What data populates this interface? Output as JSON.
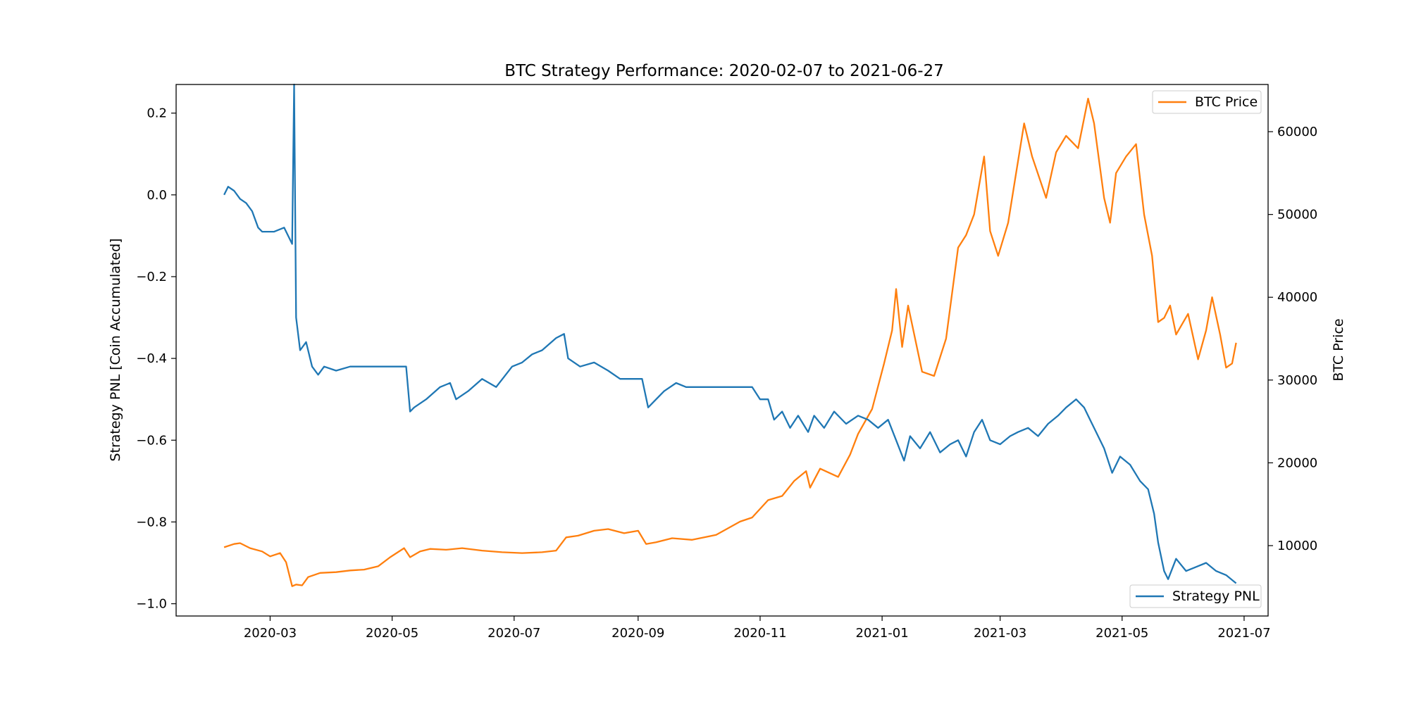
{
  "chart_data": {
    "type": "line",
    "title": "BTC Strategy Performance: 2020-02-07 to 2021-06-27",
    "xlabel": "",
    "x_ticks": [
      "2020-03",
      "2020-05",
      "2020-07",
      "2020-09",
      "2020-11",
      "2021-01",
      "2021-03",
      "2021-05",
      "2021-07"
    ],
    "xlim": [
      "2020-01-14",
      "2021-07-13"
    ],
    "left_axis": {
      "label": "Strategy PNL [Coin Accumulated]",
      "ylim": [
        -1.03,
        0.27
      ],
      "ticks": [
        0.2,
        0.0,
        -0.2,
        -0.4,
        -0.6,
        -0.8,
        -1.0
      ],
      "tick_labels": [
        "0.2",
        "0.0",
        "−0.2",
        "−0.4",
        "−0.6",
        "−0.8",
        "−1.0"
      ]
    },
    "right_axis": {
      "label": "BTC Price",
      "ylim": [
        1500,
        65700
      ],
      "ticks": [
        10000,
        20000,
        30000,
        40000,
        50000,
        60000
      ],
      "tick_labels": [
        "10000",
        "20000",
        "30000",
        "40000",
        "50000",
        "60000"
      ]
    },
    "series": [
      {
        "name": "Strategy PNL",
        "axis": "left",
        "color": "#1f77b4",
        "legend": "lower-right",
        "points": [
          [
            "2020-02-07",
            0.0
          ],
          [
            "2020-02-09",
            0.02
          ],
          [
            "2020-02-12",
            0.01
          ],
          [
            "2020-02-15",
            -0.01
          ],
          [
            "2020-02-18",
            -0.02
          ],
          [
            "2020-02-21",
            -0.04
          ],
          [
            "2020-02-24",
            -0.08
          ],
          [
            "2020-02-26",
            -0.09
          ],
          [
            "2020-03-03",
            -0.09
          ],
          [
            "2020-03-08",
            -0.08
          ],
          [
            "2020-03-10",
            -0.1
          ],
          [
            "2020-03-12",
            -0.12
          ],
          [
            "2020-03-13",
            0.27
          ],
          [
            "2020-03-14",
            -0.3
          ],
          [
            "2020-03-16",
            -0.38
          ],
          [
            "2020-03-19",
            -0.36
          ],
          [
            "2020-03-22",
            -0.42
          ],
          [
            "2020-03-25",
            -0.44
          ],
          [
            "2020-03-28",
            -0.42
          ],
          [
            "2020-04-03",
            -0.43
          ],
          [
            "2020-04-10",
            -0.42
          ],
          [
            "2020-04-20",
            -0.42
          ],
          [
            "2020-04-30",
            -0.42
          ],
          [
            "2020-05-08",
            -0.42
          ],
          [
            "2020-05-10",
            -0.53
          ],
          [
            "2020-05-12",
            -0.52
          ],
          [
            "2020-05-18",
            -0.5
          ],
          [
            "2020-05-25",
            -0.47
          ],
          [
            "2020-05-30",
            -0.46
          ],
          [
            "2020-06-02",
            -0.5
          ],
          [
            "2020-06-08",
            -0.48
          ],
          [
            "2020-06-15",
            -0.45
          ],
          [
            "2020-06-22",
            -0.47
          ],
          [
            "2020-06-30",
            -0.42
          ],
          [
            "2020-07-05",
            -0.41
          ],
          [
            "2020-07-10",
            -0.39
          ],
          [
            "2020-07-15",
            -0.38
          ],
          [
            "2020-07-22",
            -0.35
          ],
          [
            "2020-07-26",
            -0.34
          ],
          [
            "2020-07-28",
            -0.4
          ],
          [
            "2020-08-03",
            -0.42
          ],
          [
            "2020-08-10",
            -0.41
          ],
          [
            "2020-08-17",
            -0.43
          ],
          [
            "2020-08-23",
            -0.45
          ],
          [
            "2020-09-03",
            -0.45
          ],
          [
            "2020-09-06",
            -0.52
          ],
          [
            "2020-09-10",
            -0.5
          ],
          [
            "2020-09-14",
            -0.48
          ],
          [
            "2020-09-20",
            -0.46
          ],
          [
            "2020-09-25",
            -0.47
          ],
          [
            "2020-10-05",
            -0.47
          ],
          [
            "2020-10-20",
            -0.47
          ],
          [
            "2020-10-28",
            -0.47
          ],
          [
            "2020-11-01",
            -0.5
          ],
          [
            "2020-11-05",
            -0.5
          ],
          [
            "2020-11-08",
            -0.55
          ],
          [
            "2020-11-12",
            -0.53
          ],
          [
            "2020-11-16",
            -0.57
          ],
          [
            "2020-11-20",
            -0.54
          ],
          [
            "2020-11-25",
            -0.58
          ],
          [
            "2020-11-28",
            -0.54
          ],
          [
            "2020-12-03",
            -0.57
          ],
          [
            "2020-12-08",
            -0.53
          ],
          [
            "2020-12-14",
            -0.56
          ],
          [
            "2020-12-20",
            -0.54
          ],
          [
            "2020-12-25",
            -0.55
          ],
          [
            "2020-12-30",
            -0.57
          ],
          [
            "2021-01-04",
            -0.55
          ],
          [
            "2021-01-08",
            -0.6
          ],
          [
            "2021-01-12",
            -0.65
          ],
          [
            "2021-01-15",
            -0.59
          ],
          [
            "2021-01-20",
            -0.62
          ],
          [
            "2021-01-25",
            -0.58
          ],
          [
            "2021-01-30",
            -0.63
          ],
          [
            "2021-02-04",
            -0.61
          ],
          [
            "2021-02-08",
            -0.6
          ],
          [
            "2021-02-12",
            -0.64
          ],
          [
            "2021-02-16",
            -0.58
          ],
          [
            "2021-02-20",
            -0.55
          ],
          [
            "2021-02-24",
            -0.6
          ],
          [
            "2021-03-01",
            -0.61
          ],
          [
            "2021-03-06",
            -0.59
          ],
          [
            "2021-03-10",
            -0.58
          ],
          [
            "2021-03-15",
            -0.57
          ],
          [
            "2021-03-20",
            -0.59
          ],
          [
            "2021-03-25",
            -0.56
          ],
          [
            "2021-03-30",
            -0.54
          ],
          [
            "2021-04-03",
            -0.52
          ],
          [
            "2021-04-08",
            -0.5
          ],
          [
            "2021-04-12",
            -0.52
          ],
          [
            "2021-04-15",
            -0.55
          ],
          [
            "2021-04-18",
            -0.58
          ],
          [
            "2021-04-22",
            -0.62
          ],
          [
            "2021-04-26",
            -0.68
          ],
          [
            "2021-04-30",
            -0.64
          ],
          [
            "2021-05-05",
            -0.66
          ],
          [
            "2021-05-10",
            -0.7
          ],
          [
            "2021-05-14",
            -0.72
          ],
          [
            "2021-05-17",
            -0.78
          ],
          [
            "2021-05-19",
            -0.85
          ],
          [
            "2021-05-22",
            -0.92
          ],
          [
            "2021-05-24",
            -0.94
          ],
          [
            "2021-05-28",
            -0.89
          ],
          [
            "2021-06-02",
            -0.92
          ],
          [
            "2021-06-07",
            -0.91
          ],
          [
            "2021-06-12",
            -0.9
          ],
          [
            "2021-06-17",
            -0.92
          ],
          [
            "2021-06-22",
            -0.93
          ],
          [
            "2021-06-27",
            -0.95
          ]
        ]
      },
      {
        "name": "BTC Price",
        "axis": "right",
        "color": "#ff7f0e",
        "legend": "upper-right",
        "points": [
          [
            "2020-02-07",
            9800
          ],
          [
            "2020-02-12",
            10200
          ],
          [
            "2020-02-15",
            10300
          ],
          [
            "2020-02-20",
            9700
          ],
          [
            "2020-02-26",
            9300
          ],
          [
            "2020-03-01",
            8700
          ],
          [
            "2020-03-06",
            9100
          ],
          [
            "2020-03-09",
            8000
          ],
          [
            "2020-03-12",
            5100
          ],
          [
            "2020-03-14",
            5300
          ],
          [
            "2020-03-17",
            5200
          ],
          [
            "2020-03-20",
            6200
          ],
          [
            "2020-03-26",
            6700
          ],
          [
            "2020-04-03",
            6800
          ],
          [
            "2020-04-10",
            7000
          ],
          [
            "2020-04-17",
            7100
          ],
          [
            "2020-04-24",
            7500
          ],
          [
            "2020-04-30",
            8600
          ],
          [
            "2020-05-07",
            9700
          ],
          [
            "2020-05-10",
            8600
          ],
          [
            "2020-05-15",
            9300
          ],
          [
            "2020-05-20",
            9600
          ],
          [
            "2020-05-28",
            9500
          ],
          [
            "2020-06-05",
            9700
          ],
          [
            "2020-06-15",
            9400
          ],
          [
            "2020-06-25",
            9200
          ],
          [
            "2020-07-05",
            9100
          ],
          [
            "2020-07-15",
            9200
          ],
          [
            "2020-07-22",
            9400
          ],
          [
            "2020-07-27",
            11000
          ],
          [
            "2020-08-02",
            11200
          ],
          [
            "2020-08-10",
            11800
          ],
          [
            "2020-08-17",
            12000
          ],
          [
            "2020-08-25",
            11500
          ],
          [
            "2020-09-01",
            11800
          ],
          [
            "2020-09-05",
            10200
          ],
          [
            "2020-09-10",
            10400
          ],
          [
            "2020-09-18",
            10900
          ],
          [
            "2020-09-28",
            10700
          ],
          [
            "2020-10-10",
            11300
          ],
          [
            "2020-10-22",
            12900
          ],
          [
            "2020-10-28",
            13400
          ],
          [
            "2020-11-05",
            15500
          ],
          [
            "2020-11-12",
            16000
          ],
          [
            "2020-11-18",
            17800
          ],
          [
            "2020-11-24",
            19000
          ],
          [
            "2020-11-26",
            17000
          ],
          [
            "2020-12-01",
            19300
          ],
          [
            "2020-12-10",
            18300
          ],
          [
            "2020-12-16",
            21000
          ],
          [
            "2020-12-20",
            23500
          ],
          [
            "2020-12-27",
            26500
          ],
          [
            "2021-01-02",
            32000
          ],
          [
            "2021-01-06",
            36000
          ],
          [
            "2021-01-08",
            41000
          ],
          [
            "2021-01-11",
            34000
          ],
          [
            "2021-01-14",
            39000
          ],
          [
            "2021-01-21",
            31000
          ],
          [
            "2021-01-27",
            30500
          ],
          [
            "2021-02-02",
            35000
          ],
          [
            "2021-02-08",
            46000
          ],
          [
            "2021-02-12",
            47500
          ],
          [
            "2021-02-16",
            50000
          ],
          [
            "2021-02-21",
            57000
          ],
          [
            "2021-02-24",
            48000
          ],
          [
            "2021-02-28",
            45000
          ],
          [
            "2021-03-05",
            49000
          ],
          [
            "2021-03-09",
            55000
          ],
          [
            "2021-03-13",
            61000
          ],
          [
            "2021-03-17",
            57000
          ],
          [
            "2021-03-24",
            52000
          ],
          [
            "2021-03-29",
            57500
          ],
          [
            "2021-04-03",
            59500
          ],
          [
            "2021-04-09",
            58000
          ],
          [
            "2021-04-14",
            64000
          ],
          [
            "2021-04-17",
            61000
          ],
          [
            "2021-04-22",
            52000
          ],
          [
            "2021-04-25",
            49000
          ],
          [
            "2021-04-28",
            55000
          ],
          [
            "2021-05-03",
            57000
          ],
          [
            "2021-05-08",
            58500
          ],
          [
            "2021-05-12",
            50000
          ],
          [
            "2021-05-16",
            45000
          ],
          [
            "2021-05-19",
            37000
          ],
          [
            "2021-05-22",
            37500
          ],
          [
            "2021-05-25",
            39000
          ],
          [
            "2021-05-28",
            35500
          ],
          [
            "2021-06-03",
            38000
          ],
          [
            "2021-06-08",
            32500
          ],
          [
            "2021-06-12",
            36000
          ],
          [
            "2021-06-15",
            40000
          ],
          [
            "2021-06-19",
            35500
          ],
          [
            "2021-06-22",
            31500
          ],
          [
            "2021-06-25",
            32000
          ],
          [
            "2021-06-27",
            34500
          ]
        ]
      }
    ]
  }
}
